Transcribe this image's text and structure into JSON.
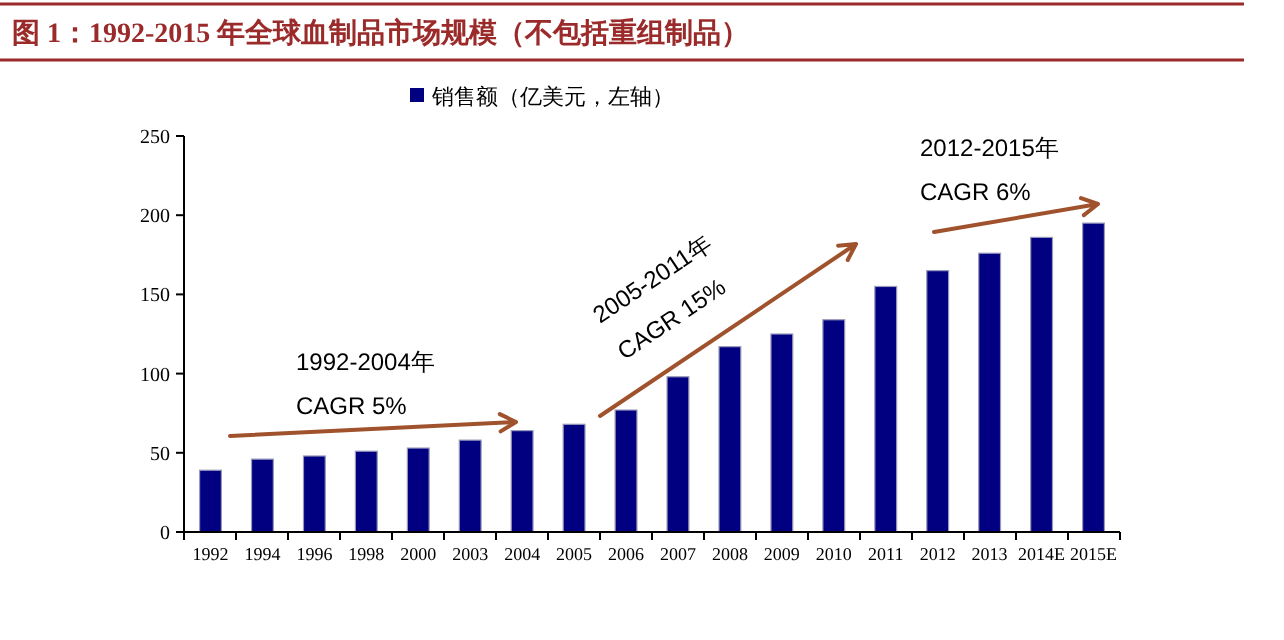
{
  "chart_data": {
    "type": "bar",
    "title": "图 1：1992-2015 年全球血制品市场规模（不包括重组制品）",
    "categories": [
      "1992",
      "1994",
      "1996",
      "1998",
      "2000",
      "2003",
      "2004",
      "2005",
      "2006",
      "2007",
      "2008",
      "2009",
      "2010",
      "2011",
      "2012",
      "2013",
      "2014E",
      "2015E"
    ],
    "series": [
      {
        "name": "销售额（亿美元，左轴）",
        "color": "#000080",
        "values": [
          39,
          46,
          48,
          51,
          53,
          58,
          64,
          68,
          77,
          98,
          117,
          125,
          134,
          155,
          165,
          176,
          186,
          195
        ]
      }
    ],
    "ylim": [
      0,
      250
    ],
    "yticks": [
      0,
      50,
      100,
      150,
      200,
      250
    ],
    "grid": false,
    "legend": "top",
    "annotations": [
      "1992-2004年\nCAGR 5%",
      "2005-2011年\nCAGR 15%",
      "2012-2015年\nCAGR 6%"
    ]
  }
}
